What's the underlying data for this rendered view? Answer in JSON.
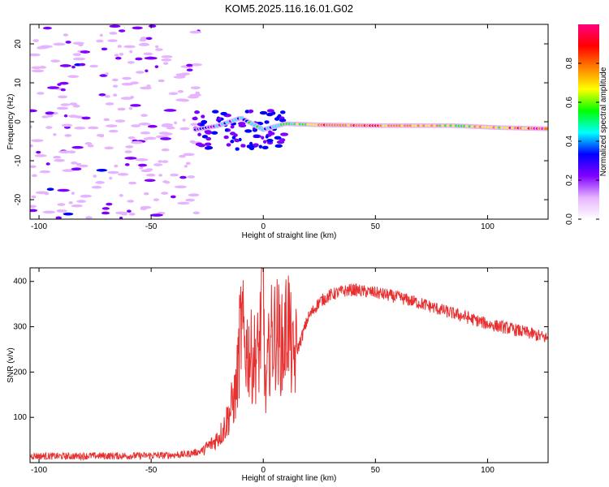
{
  "title": "KOM5.2025.116.16.01.G02",
  "chart_data": [
    {
      "type": "heatmap",
      "xlabel": "Height of straight line (km)",
      "ylabel": "Frequency (Hz)",
      "xlim": [
        -104,
        127
      ],
      "ylim": [
        -25,
        25
      ],
      "xticks": [
        -100,
        -50,
        0,
        50,
        100
      ],
      "xtick_labels": [
        "-100",
        "-50",
        "0",
        "50",
        "100"
      ],
      "yticks": [
        -20,
        -10,
        0,
        10,
        20
      ],
      "ytick_labels": [
        "-20",
        "-10",
        "0",
        "10",
        "20"
      ],
      "colorbar": {
        "label": "Normalized spectral amplitude",
        "range": [
          0,
          1
        ],
        "ticks": [
          0.0,
          0.2,
          0.4,
          0.6,
          0.8
        ],
        "tick_labels": [
          "0.0",
          "0.2",
          "0.4",
          "0.6",
          "0.8"
        ],
        "colors": [
          "#ffffff",
          "#e6b3ff",
          "#8000ff",
          "#0000ff",
          "#00ffff",
          "#00ff00",
          "#ffff00",
          "#ff8000",
          "#ff0000",
          "#ff0080"
        ]
      },
      "ridge": [
        {
          "x": -30,
          "freq": -2,
          "amp": 0.25
        },
        {
          "x": -20,
          "freq": -1,
          "amp": 0.3
        },
        {
          "x": -10,
          "freq": 1,
          "amp": 0.4
        },
        {
          "x": 0,
          "freq": -2,
          "amp": 0.45
        },
        {
          "x": 10,
          "freq": -0.5,
          "amp": 0.5
        },
        {
          "x": 25,
          "freq": -0.8,
          "amp": 0.7
        },
        {
          "x": 50,
          "freq": -1,
          "amp": 0.85
        },
        {
          "x": 85,
          "freq": -1,
          "amp": 0.6
        },
        {
          "x": 105,
          "freq": -1.5,
          "amp": 0.7
        },
        {
          "x": 127,
          "freq": -1.8,
          "amp": 0.9
        }
      ],
      "grid": false
    },
    {
      "type": "line",
      "xlabel": "Height of straight line (km)",
      "ylabel": "SNR (v/v)",
      "xlim": [
        -104,
        127
      ],
      "ylim": [
        0,
        430
      ],
      "xticks": [
        -100,
        -50,
        0,
        50,
        100
      ],
      "xtick_labels": [
        "-100",
        "-50",
        "0",
        "50",
        "100"
      ],
      "yticks": [
        100,
        200,
        300,
        400
      ],
      "ytick_labels": [
        "100",
        "200",
        "300",
        "400"
      ],
      "series": [
        {
          "color": "#e83030",
          "x": [
            -104,
            -90,
            -75,
            -60,
            -45,
            -35,
            -28,
            -22,
            -18,
            -15,
            -12,
            -10,
            -8,
            -5,
            -2,
            0,
            1,
            3,
            6,
            9,
            11,
            13,
            16,
            20,
            25,
            30,
            35,
            40,
            45,
            50,
            60,
            70,
            80,
            90,
            100,
            110,
            120,
            127
          ],
          "values": [
            15,
            14,
            15,
            15,
            16,
            18,
            25,
            45,
            70,
            110,
            160,
            300,
            260,
            230,
            240,
            390,
            140,
            270,
            290,
            250,
            330,
            220,
            260,
            320,
            355,
            370,
            378,
            382,
            378,
            375,
            365,
            352,
            336,
            322,
            306,
            296,
            284,
            274
          ]
        }
      ],
      "grid": false
    }
  ]
}
